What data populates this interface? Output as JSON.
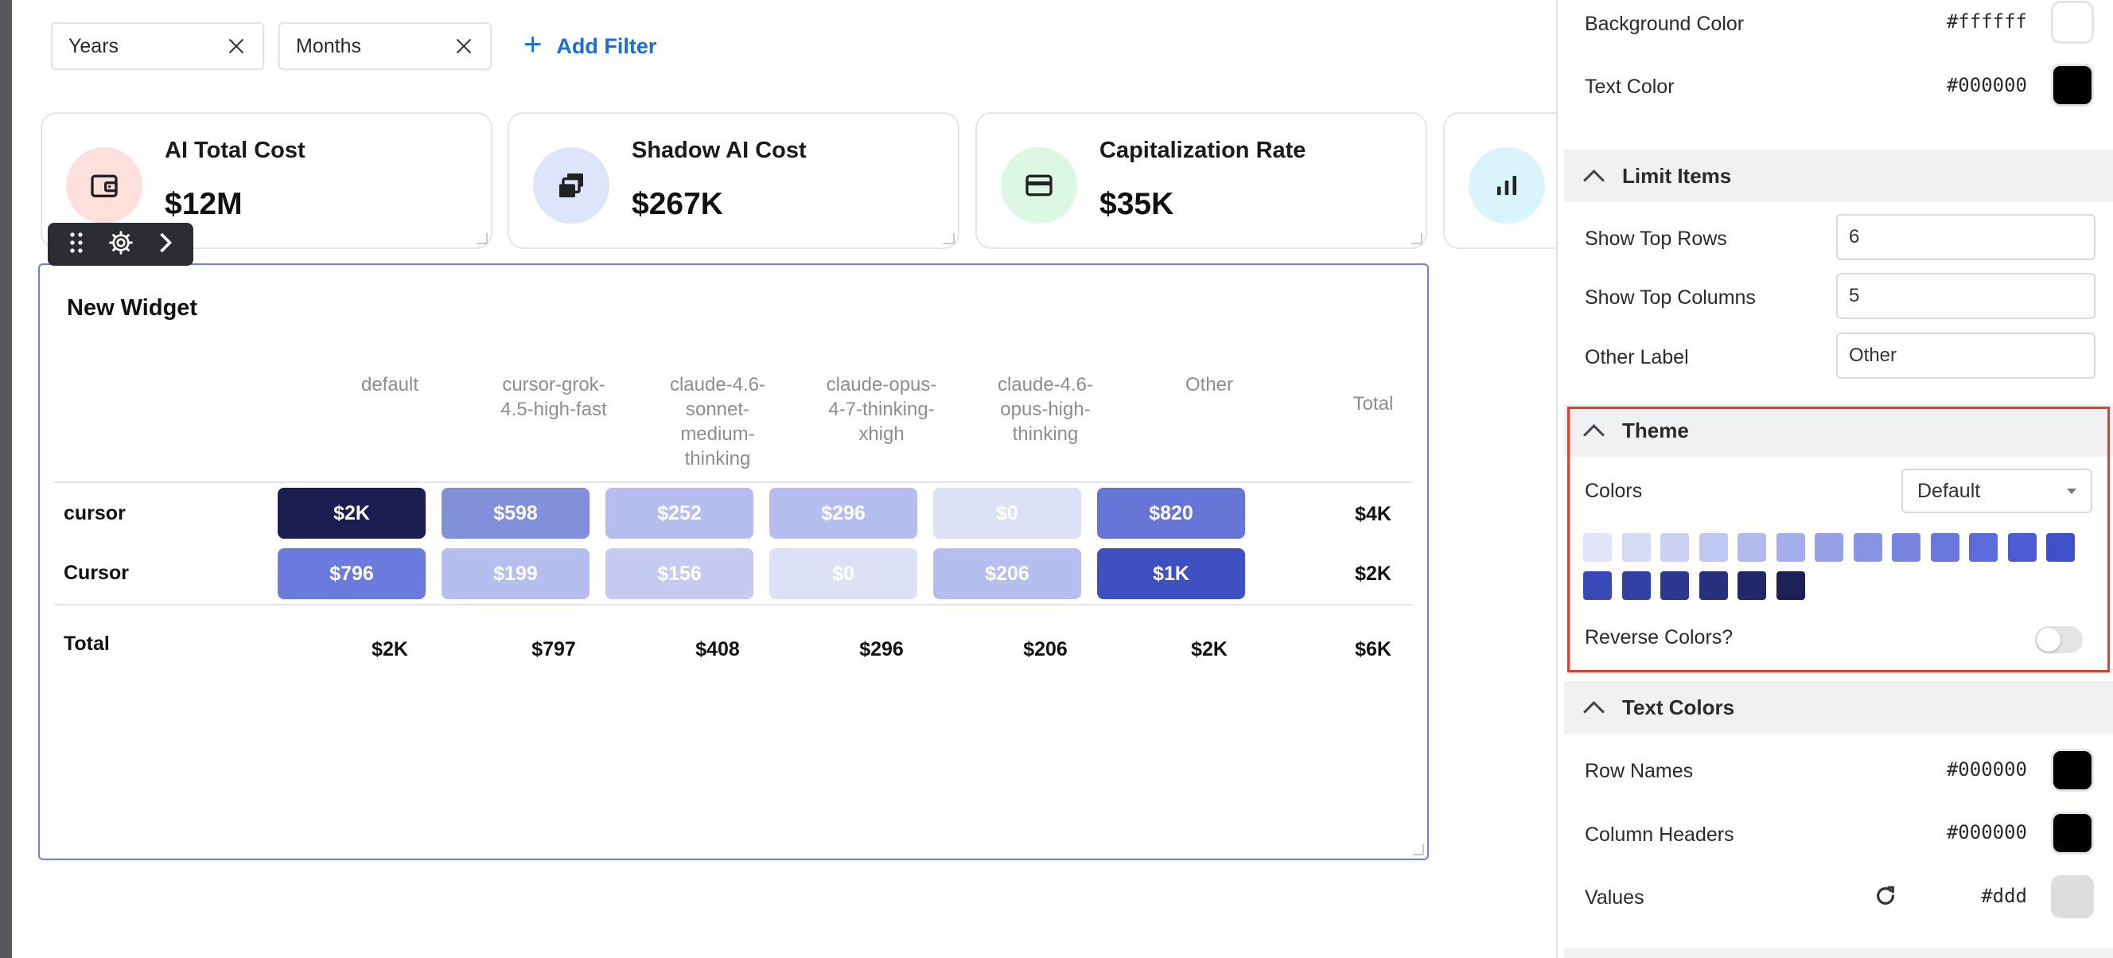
{
  "filters": {
    "chips": [
      "Years",
      "Months"
    ],
    "add_label": "Add Filter"
  },
  "kpis": [
    {
      "label": "AI Total Cost",
      "value": "$12M",
      "color": "#fde0dc",
      "icon": "wallet-icon"
    },
    {
      "label": "Shadow AI Cost",
      "value": "$267K",
      "color": "#dde5fb",
      "icon": "layers-icon"
    },
    {
      "label": "Capitalization Rate",
      "value": "$35K",
      "color": "#dcf8e2",
      "icon": "credit-card-icon"
    },
    {
      "label": "",
      "value": "",
      "color": "#d9f5fb",
      "icon": "bar-chart-icon"
    }
  ],
  "widget": {
    "title": "New Widget",
    "columns": [
      "default",
      "cursor-grok-\n4.5-high-fast",
      "claude-4.6-\nsonnet-\nmedium-\nthinking",
      "claude-opus-\n4-7-thinking-\nxhigh",
      "claude-4.6-\nopus-high-\nthinking",
      "Other"
    ],
    "total_label": "Total",
    "rows": [
      {
        "name": "cursor",
        "values": [
          "$2K",
          "$598",
          "$252",
          "$296",
          "$0",
          "$820"
        ],
        "total": "$4K",
        "colors": [
          "#1b1e52",
          "#8190d9",
          "#b6bef0",
          "#b6bef0",
          "#dde1f6",
          "#6674d6"
        ]
      },
      {
        "name": "Cursor",
        "values": [
          "$796",
          "$199",
          "$156",
          "$0",
          "$206",
          "$1K"
        ],
        "total": "$2K",
        "colors": [
          "#6b7bdd",
          "#b6bef0",
          "#c4caf2",
          "#dde1f6",
          "#b6bef0",
          "#3f51c2"
        ]
      }
    ],
    "totals_row": {
      "name": "Total",
      "values": [
        "$2K",
        "$797",
        "$408",
        "$296",
        "$206",
        "$2K"
      ],
      "total": "$6K"
    }
  },
  "panel": {
    "background_color": {
      "label": "Background Color",
      "hex": "#ffffff"
    },
    "text_color": {
      "label": "Text Color",
      "hex": "#000000"
    },
    "limit_items": {
      "title": "Limit Items",
      "show_top_rows": {
        "label": "Show Top Rows",
        "value": "6"
      },
      "show_top_columns": {
        "label": "Show Top Columns",
        "value": "5"
      },
      "other_label": {
        "label": "Other Label",
        "value": "Other"
      }
    },
    "theme": {
      "title": "Theme",
      "colors_label": "Colors",
      "colors_value": "Default",
      "palette": [
        "#e2e5f7",
        "#d6dbf4",
        "#cbd1f2",
        "#c0c7f0",
        "#b2baed",
        "#a4aeea",
        "#96a1e7",
        "#8794e4",
        "#7886e1",
        "#6a78dd",
        "#5b6bd9",
        "#4c5dd4",
        "#3f51c9",
        "#3848b6",
        "#3240a3",
        "#2c3890",
        "#26307c",
        "#202869",
        "#1b2156"
      ],
      "reverse_label": "Reverse Colors?"
    },
    "text_colors": {
      "title": "Text Colors",
      "row_names": {
        "label": "Row Names",
        "hex": "#000000"
      },
      "column_headers": {
        "label": "Column Headers",
        "hex": "#000000"
      },
      "values": {
        "label": "Values",
        "hex": "#ddd"
      }
    }
  }
}
